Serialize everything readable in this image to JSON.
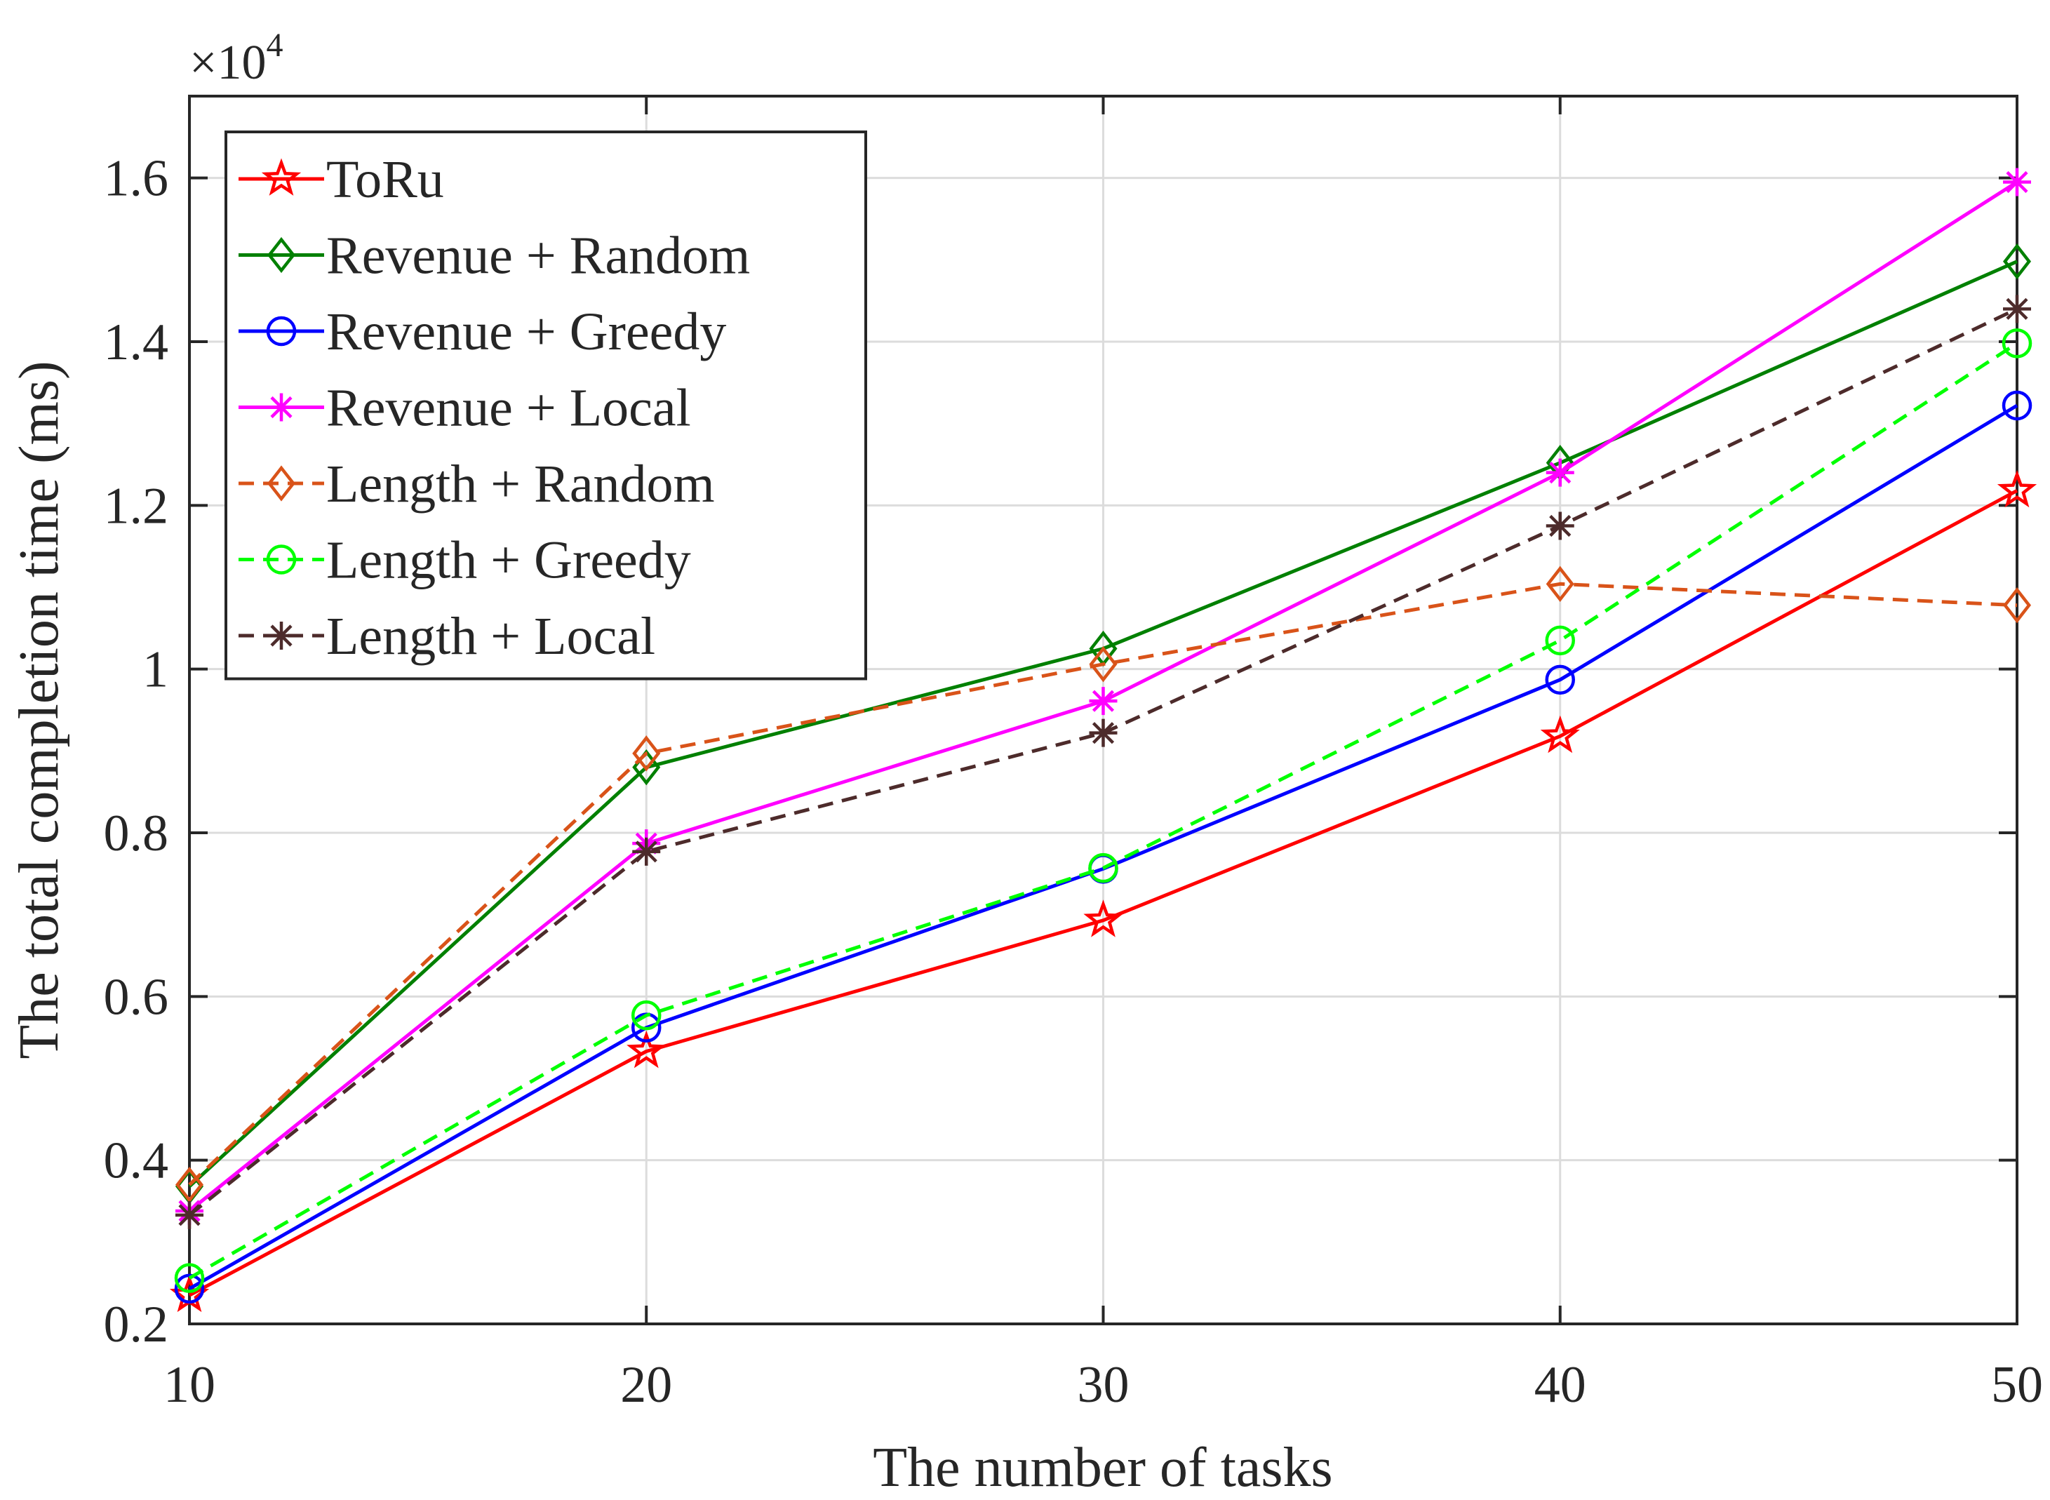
{
  "chart_data": {
    "type": "line",
    "title": "",
    "xlabel": "The number of tasks",
    "ylabel": "The total completion time (ms)",
    "exponent_label": "×10",
    "exponent_power": "4",
    "x": [
      10,
      20,
      30,
      40,
      50
    ],
    "xlim": [
      10,
      50
    ],
    "ylim": [
      0.2,
      1.7
    ],
    "xticks": [
      10,
      20,
      30,
      40,
      50
    ],
    "xtick_labels": [
      "10",
      "20",
      "30",
      "40",
      "50"
    ],
    "yticks": [
      0.2,
      0.4,
      0.6,
      0.8,
      1.0,
      1.2,
      1.4,
      1.6
    ],
    "ytick_labels": [
      "0.2",
      "0.4",
      "0.6",
      "0.8",
      "1",
      "1.2",
      "1.4",
      "1.6"
    ],
    "grid": true,
    "legend_position": "top-left",
    "series": [
      {
        "name": "ToRu",
        "color": "#ff0000",
        "dash": "solid",
        "marker": "pentagram",
        "values": [
          0.235,
          0.533,
          0.693,
          0.918,
          1.218
        ]
      },
      {
        "name": "Revenue + Random",
        "color": "#008000",
        "dash": "solid",
        "marker": "diamond",
        "values": [
          0.368,
          0.88,
          1.025,
          1.252,
          1.498
        ]
      },
      {
        "name": "Revenue + Greedy",
        "color": "#0000ff",
        "dash": "solid",
        "marker": "circle",
        "values": [
          0.243,
          0.562,
          0.756,
          0.987,
          1.322
        ]
      },
      {
        "name": "Revenue + Local",
        "color": "#ff00ff",
        "dash": "solid",
        "marker": "asterisk",
        "values": [
          0.338,
          0.787,
          0.961,
          1.24,
          1.595
        ]
      },
      {
        "name": "Length + Random",
        "color": "#d95319",
        "dash": "dashed",
        "marker": "diamond",
        "values": [
          0.37,
          0.897,
          1.006,
          1.104,
          1.078
        ]
      },
      {
        "name": "Length + Greedy",
        "color": "#00ff00",
        "dash": "dashed",
        "marker": "circle",
        "values": [
          0.256,
          0.577,
          0.757,
          1.035,
          1.398
        ]
      },
      {
        "name": "Length + Local",
        "color": "#4d2b2b",
        "dash": "dashed",
        "marker": "asterisk",
        "values": [
          0.333,
          0.777,
          0.922,
          1.175,
          1.44
        ]
      }
    ]
  }
}
